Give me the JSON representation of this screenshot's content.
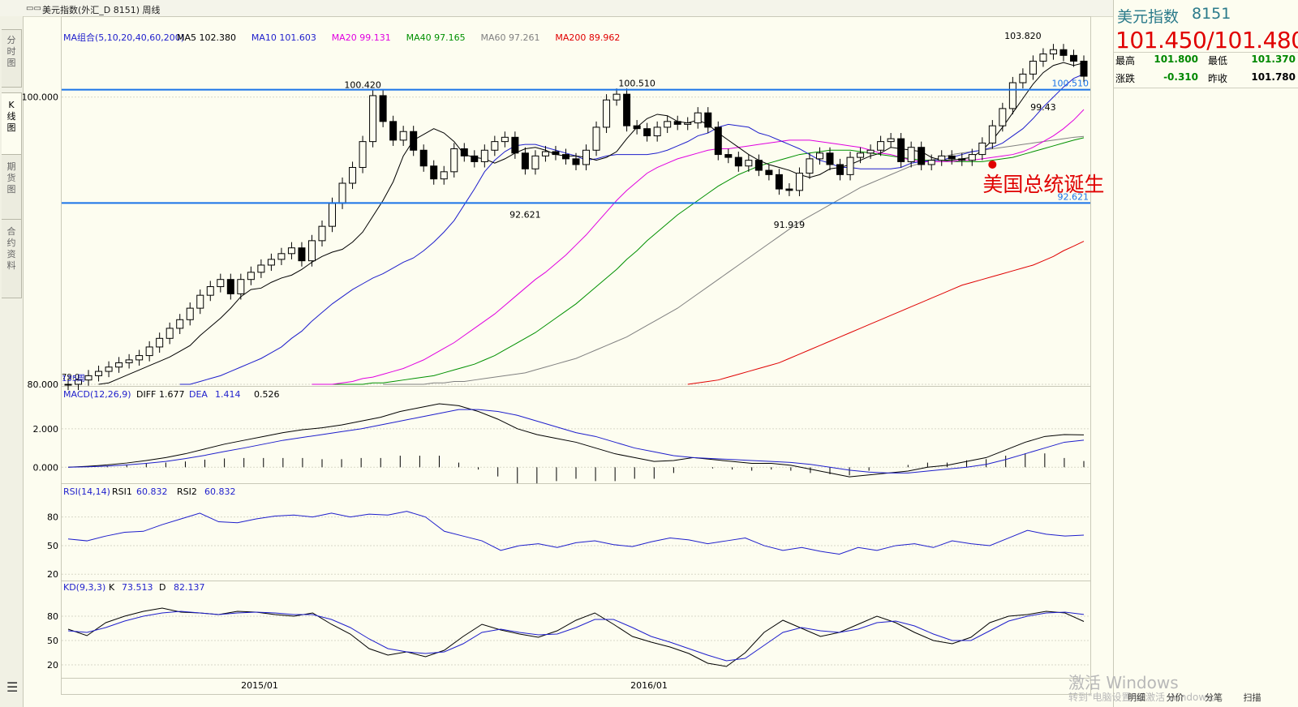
{
  "window": {
    "icon": "chart-icon",
    "title": "美元指数(外汇_D 8151) 周线"
  },
  "side_tabs": [
    "分时图",
    "K线图",
    "期货图",
    "合约资料"
  ],
  "active_tab": 1,
  "menu_icon": "list-icon",
  "legend": {
    "ma_group": "MA组合(5,10,20,40,60,200)",
    "ma": [
      {
        "label": "MA5 102.380",
        "color": "#000000"
      },
      {
        "label": "MA10 101.603",
        "color": "#1e1ecc"
      },
      {
        "label": "MA20 99.131",
        "color": "#e000e0"
      },
      {
        "label": "MA40 97.165",
        "color": "#009000"
      },
      {
        "label": "MA60 97.261",
        "color": "#808080"
      },
      {
        "label": "MA200 89.962",
        "color": "#e00000"
      }
    ],
    "macd_title": "MACD(12,26,9)",
    "macd_vals": [
      "DIFF",
      "1.677",
      "DEA",
      "1.414",
      "0.526"
    ],
    "rsi_title": "RSI(14,14)",
    "rsi_vals": [
      "RSI1",
      "60.832",
      "RSI2",
      "60.832"
    ],
    "kd_title": "KD(9,3,3)",
    "kd_vals": [
      "K",
      "73.513",
      "D",
      "82.137"
    ]
  },
  "quote": {
    "name": "美元指数",
    "code": "8151",
    "price": "101.450/101.480",
    "high_label": "最高",
    "high": "101.800",
    "low_label": "最低",
    "low": "101.370",
    "change_label": "涨跌",
    "change": "-0.310",
    "prev_label": "昨收",
    "prev": "101.780"
  },
  "bottom_tabs": [
    "明细",
    "分价",
    "分笔",
    "扫描"
  ],
  "watermark": {
    "line1": "激活 Windows",
    "line2": "转到\"电脑设置\"以激活 Windows。"
  },
  "colors": {
    "ma5": "#000000",
    "ma10": "#1e1ecc",
    "ma20": "#e000e0",
    "ma40": "#009000",
    "ma60": "#808080",
    "ma200": "#e00000",
    "hline": "#1a73e8",
    "annotation": "#e00000",
    "dea": "#1e1ecc"
  },
  "chart_data": {
    "type": "candlestick",
    "period": "周线",
    "ylim": [
      80,
      104.5
    ],
    "y_ticks": [
      "100.000",
      "80.000"
    ],
    "x_ticks": [
      "2015/01",
      "2016/01"
    ],
    "start_labels": [
      "79.0",
      "135周"
    ],
    "hlines": [
      {
        "value": 100.51,
        "label": "100.510"
      },
      {
        "value": 92.621,
        "label": "92.621"
      }
    ],
    "peaks": [
      {
        "week": 29,
        "value": 100.42,
        "label": "100.420"
      },
      {
        "week": 56,
        "value": 100.51,
        "label": "100.510"
      },
      {
        "week": 45,
        "value": 92.621,
        "label": "92.621"
      },
      {
        "week": 71,
        "value": 91.919,
        "label": "91.919"
      },
      {
        "week": 96,
        "value": 99.43,
        "label": "99.43"
      },
      {
        "week": 94,
        "value": 103.82,
        "label": "103.820"
      }
    ],
    "annotation": {
      "week": 91,
      "value": 95.3,
      "text": "美国总统诞生"
    },
    "closes": [
      80.0,
      80.3,
      80.6,
      80.9,
      81.2,
      81.5,
      81.7,
      82.0,
      82.6,
      83.2,
      83.9,
      84.5,
      85.3,
      86.2,
      86.8,
      87.3,
      86.3,
      87.3,
      87.8,
      88.3,
      88.7,
      89.1,
      89.5,
      88.6,
      90.0,
      91.0,
      92.6,
      94.0,
      95.1,
      96.9,
      100.1,
      98.3,
      97.0,
      97.6,
      96.3,
      95.2,
      94.3,
      94.8,
      96.4,
      95.9,
      95.5,
      96.3,
      96.9,
      97.2,
      96.1,
      95.0,
      95.9,
      96.2,
      96.0,
      95.7,
      95.3,
      96.3,
      97.9,
      99.8,
      100.2,
      98.0,
      97.8,
      97.3,
      97.9,
      98.3,
      98.1,
      98.2,
      98.9,
      97.9,
      96.0,
      95.8,
      95.2,
      95.6,
      94.9,
      94.6,
      93.6,
      93.5,
      94.7,
      95.7,
      96.1,
      95.3,
      94.6,
      95.8,
      96.1,
      96.3,
      96.9,
      97.1,
      95.5,
      96.5,
      95.3,
      95.6,
      95.9,
      95.7,
      95.6,
      96.0,
      96.8,
      98.0,
      99.2,
      101.0,
      101.6,
      102.5,
      103.0,
      103.3,
      102.9,
      102.5,
      101.45
    ],
    "ma": {
      "ma5": [
        80.0,
        80.1,
        80.4,
        80.7,
        81.0,
        81.3,
        81.6,
        81.9,
        82.3,
        82.7,
        83.4,
        84.0,
        84.6,
        85.3,
        86.1,
        86.6,
        86.7,
        87.1,
        87.4,
        87.6,
        88.0,
        88.5,
        88.9,
        89.2,
        89.4,
        89.9,
        90.6,
        91.7,
        92.8,
        94.1,
        95.9,
        97.0,
        97.4,
        97.8,
        97.5,
        96.9,
        96.0,
        95.8,
        95.7,
        95.4,
        95.7,
        96.1,
        96.4,
        96.5,
        96.3,
        96.0,
        95.9,
        95.9,
        95.8,
        95.6,
        95.8,
        96.2,
        97.1,
        97.9,
        98.5,
        98.8,
        98.7,
        98.3,
        98.2,
        98.4,
        98.1,
        97.5,
        97.0,
        96.5,
        96.0,
        95.6,
        95.3,
        95.1,
        94.9,
        94.6,
        94.4,
        94.6,
        95.0,
        95.1,
        95.3,
        95.6,
        95.9,
        96.1,
        96.5,
        96.4,
        96.3,
        96.2,
        95.8,
        95.6,
        95.6,
        95.7,
        95.8,
        96.3,
        97.0,
        97.9,
        98.9,
        99.9,
        100.9,
        101.7,
        102.2,
        102.4,
        102.2,
        102.38
      ],
      "ma10": [
        80.0,
        80.0,
        80.2,
        80.4,
        80.6,
        80.9,
        81.2,
        81.5,
        81.8,
        82.2,
        82.6,
        83.2,
        83.7,
        84.4,
        85.0,
        85.6,
        86.1,
        86.6,
        87.0,
        87.4,
        87.7,
        88.1,
        88.5,
        88.8,
        89.3,
        89.9,
        90.6,
        91.4,
        92.5,
        93.6,
        94.8,
        95.6,
        96.2,
        96.6,
        96.7,
        96.7,
        96.5,
        96.3,
        96.1,
        95.9,
        95.6,
        95.7,
        95.9,
        96.0,
        96.0,
        96.0,
        96.0,
        96.1,
        96.3,
        96.6,
        96.9,
        97.3,
        97.5,
        97.9,
        98.1,
        98.0,
        97.9,
        97.5,
        97.3,
        97.0,
        96.7,
        96.4,
        96.0,
        95.6,
        95.4,
        95.1,
        95.1,
        95.0,
        95.0,
        95.0,
        95.0,
        95.1,
        95.4,
        95.5,
        95.6,
        95.6,
        95.8,
        96.0,
        96.2,
        96.3,
        96.5,
        96.8,
        97.3,
        97.8,
        98.5,
        99.3,
        100.0,
        100.7,
        101.3,
        101.6
      ],
      "ma20": [
        80.0,
        80.0,
        80.0,
        80.1,
        80.2,
        80.4,
        80.5,
        80.7,
        80.9,
        81.1,
        81.4,
        81.7,
        82.1,
        82.5,
        82.9,
        83.4,
        83.9,
        84.4,
        84.9,
        85.5,
        86.1,
        86.7,
        87.3,
        87.8,
        88.4,
        89.0,
        89.7,
        90.4,
        91.2,
        92.0,
        92.8,
        93.5,
        94.1,
        94.7,
        95.1,
        95.4,
        95.7,
        95.9,
        96.1,
        96.3,
        96.4,
        96.4,
        96.5,
        96.6,
        96.7,
        96.8,
        96.9,
        97.0,
        97.0,
        97.0,
        96.9,
        96.8,
        96.7,
        96.6,
        96.5,
        96.3,
        96.1,
        96.0,
        95.8,
        95.6,
        95.5,
        95.5,
        95.5,
        95.5,
        95.6,
        95.6,
        95.7,
        95.8,
        95.9,
        96.0,
        96.2,
        96.5,
        96.9,
        97.3,
        97.8,
        98.4,
        99.13
      ],
      "ma40": [
        80.0,
        80.0,
        80.0,
        80.0,
        80.1,
        80.1,
        80.2,
        80.3,
        80.4,
        80.5,
        80.6,
        80.8,
        81.0,
        81.2,
        81.4,
        81.7,
        82.0,
        82.4,
        82.8,
        83.2,
        83.6,
        84.1,
        84.6,
        85.1,
        85.6,
        86.2,
        86.8,
        87.4,
        88.0,
        88.7,
        89.3,
        90.0,
        90.6,
        91.2,
        91.8,
        92.3,
        92.8,
        93.3,
        93.8,
        94.2,
        94.6,
        94.9,
        95.2,
        95.4,
        95.6,
        95.8,
        96.0,
        96.1,
        96.2,
        96.3,
        96.3,
        96.3,
        96.2,
        96.1,
        96.0,
        95.9,
        95.8,
        95.7,
        95.6,
        95.6,
        95.6,
        95.5,
        95.5,
        95.5,
        95.5,
        95.6,
        95.7,
        95.8,
        96.0,
        96.2,
        96.4,
        96.6,
        96.8,
        97.0,
        97.17
      ],
      "ma60": [
        80.0,
        80.0,
        80.0,
        80.0,
        80.0,
        80.1,
        80.1,
        80.2,
        80.2,
        80.3,
        80.4,
        80.5,
        80.6,
        80.7,
        80.8,
        81.0,
        81.2,
        81.4,
        81.6,
        81.8,
        82.1,
        82.4,
        82.7,
        83.0,
        83.3,
        83.7,
        84.1,
        84.5,
        84.9,
        85.3,
        85.8,
        86.3,
        86.8,
        87.3,
        87.8,
        88.3,
        88.8,
        89.3,
        89.8,
        90.3,
        90.8,
        91.3,
        91.7,
        92.1,
        92.5,
        92.9,
        93.3,
        93.7,
        94.0,
        94.3,
        94.6,
        94.9,
        95.2,
        95.4,
        95.6,
        95.8,
        96.0,
        96.1,
        96.2,
        96.3,
        96.4,
        96.5,
        96.6,
        96.7,
        96.8,
        96.9,
        97.0,
        97.1,
        97.2,
        97.26
      ],
      "ma200": [
        80.0,
        80.1,
        80.2,
        80.3,
        80.5,
        80.7,
        80.9,
        81.1,
        81.3,
        81.5,
        81.8,
        82.1,
        82.4,
        82.7,
        83.0,
        83.3,
        83.6,
        83.9,
        84.2,
        84.5,
        84.8,
        85.1,
        85.4,
        85.7,
        86.0,
        86.3,
        86.6,
        86.9,
        87.1,
        87.3,
        87.5,
        87.7,
        87.9,
        88.1,
        88.3,
        88.6,
        88.9,
        89.3,
        89.62,
        89.96
      ]
    },
    "macd": {
      "ylim": [
        -1.0,
        3.3
      ],
      "y_ticks": [
        "2.000",
        "0.000"
      ],
      "diff": [
        0.0,
        0.05,
        0.12,
        0.22,
        0.35,
        0.5,
        0.7,
        0.95,
        1.2,
        1.4,
        1.6,
        1.8,
        1.95,
        2.05,
        2.2,
        2.4,
        2.6,
        2.9,
        3.1,
        3.3,
        3.2,
        2.9,
        2.5,
        2.0,
        1.7,
        1.5,
        1.3,
        1.0,
        0.7,
        0.5,
        0.3,
        0.35,
        0.5,
        0.4,
        0.3,
        0.2,
        0.2,
        0.1,
        -0.1,
        -0.3,
        -0.5,
        -0.4,
        -0.3,
        -0.2,
        0.0,
        0.1,
        0.3,
        0.5,
        0.9,
        1.3,
        1.6,
        1.7,
        1.68
      ],
      "dea": [
        0.0,
        0.02,
        0.06,
        0.12,
        0.2,
        0.3,
        0.45,
        0.62,
        0.82,
        1.0,
        1.2,
        1.4,
        1.55,
        1.7,
        1.85,
        2.0,
        2.2,
        2.4,
        2.6,
        2.8,
        3.0,
        3.0,
        2.9,
        2.7,
        2.4,
        2.1,
        1.8,
        1.6,
        1.3,
        1.0,
        0.8,
        0.6,
        0.5,
        0.45,
        0.4,
        0.35,
        0.3,
        0.25,
        0.15,
        0.0,
        -0.15,
        -0.25,
        -0.3,
        -0.3,
        -0.2,
        -0.1,
        0.0,
        0.15,
        0.4,
        0.7,
        1.0,
        1.3,
        1.41
      ]
    },
    "rsi": {
      "ylim": [
        10,
        95
      ],
      "y_ticks": [
        "80",
        "50",
        "20"
      ],
      "rsi1": [
        57,
        55,
        60,
        64,
        65,
        72,
        78,
        84,
        75,
        74,
        78,
        81,
        82,
        80,
        84,
        80,
        83,
        82,
        86,
        80,
        65,
        60,
        55,
        45,
        50,
        52,
        48,
        53,
        55,
        51,
        49,
        54,
        58,
        56,
        52,
        55,
        58,
        50,
        45,
        48,
        44,
        41,
        48,
        45,
        50,
        52,
        48,
        55,
        52,
        50,
        58,
        66,
        62,
        60,
        61
      ]
    },
    "kd": {
      "ylim": [
        5,
        100
      ],
      "y_ticks": [
        "80",
        "50",
        "20"
      ],
      "k": [
        64,
        56,
        72,
        80,
        86,
        90,
        85,
        84,
        82,
        86,
        85,
        82,
        80,
        84,
        70,
        58,
        40,
        32,
        36,
        30,
        38,
        55,
        70,
        63,
        58,
        54,
        62,
        75,
        84,
        70,
        55,
        48,
        42,
        34,
        22,
        18,
        35,
        60,
        75,
        65,
        55,
        60,
        70,
        80,
        72,
        60,
        50,
        46,
        54,
        72,
        80,
        82,
        86,
        84,
        73.5
      ],
      "d": [
        62,
        60,
        66,
        74,
        80,
        84,
        86,
        84,
        82,
        84,
        85,
        84,
        82,
        82,
        76,
        66,
        52,
        40,
        36,
        34,
        36,
        46,
        60,
        64,
        60,
        57,
        58,
        66,
        76,
        76,
        66,
        55,
        48,
        40,
        32,
        25,
        28,
        44,
        60,
        66,
        62,
        60,
        64,
        72,
        74,
        68,
        58,
        50,
        50,
        62,
        74,
        80,
        84,
        85,
        82.1
      ]
    }
  }
}
